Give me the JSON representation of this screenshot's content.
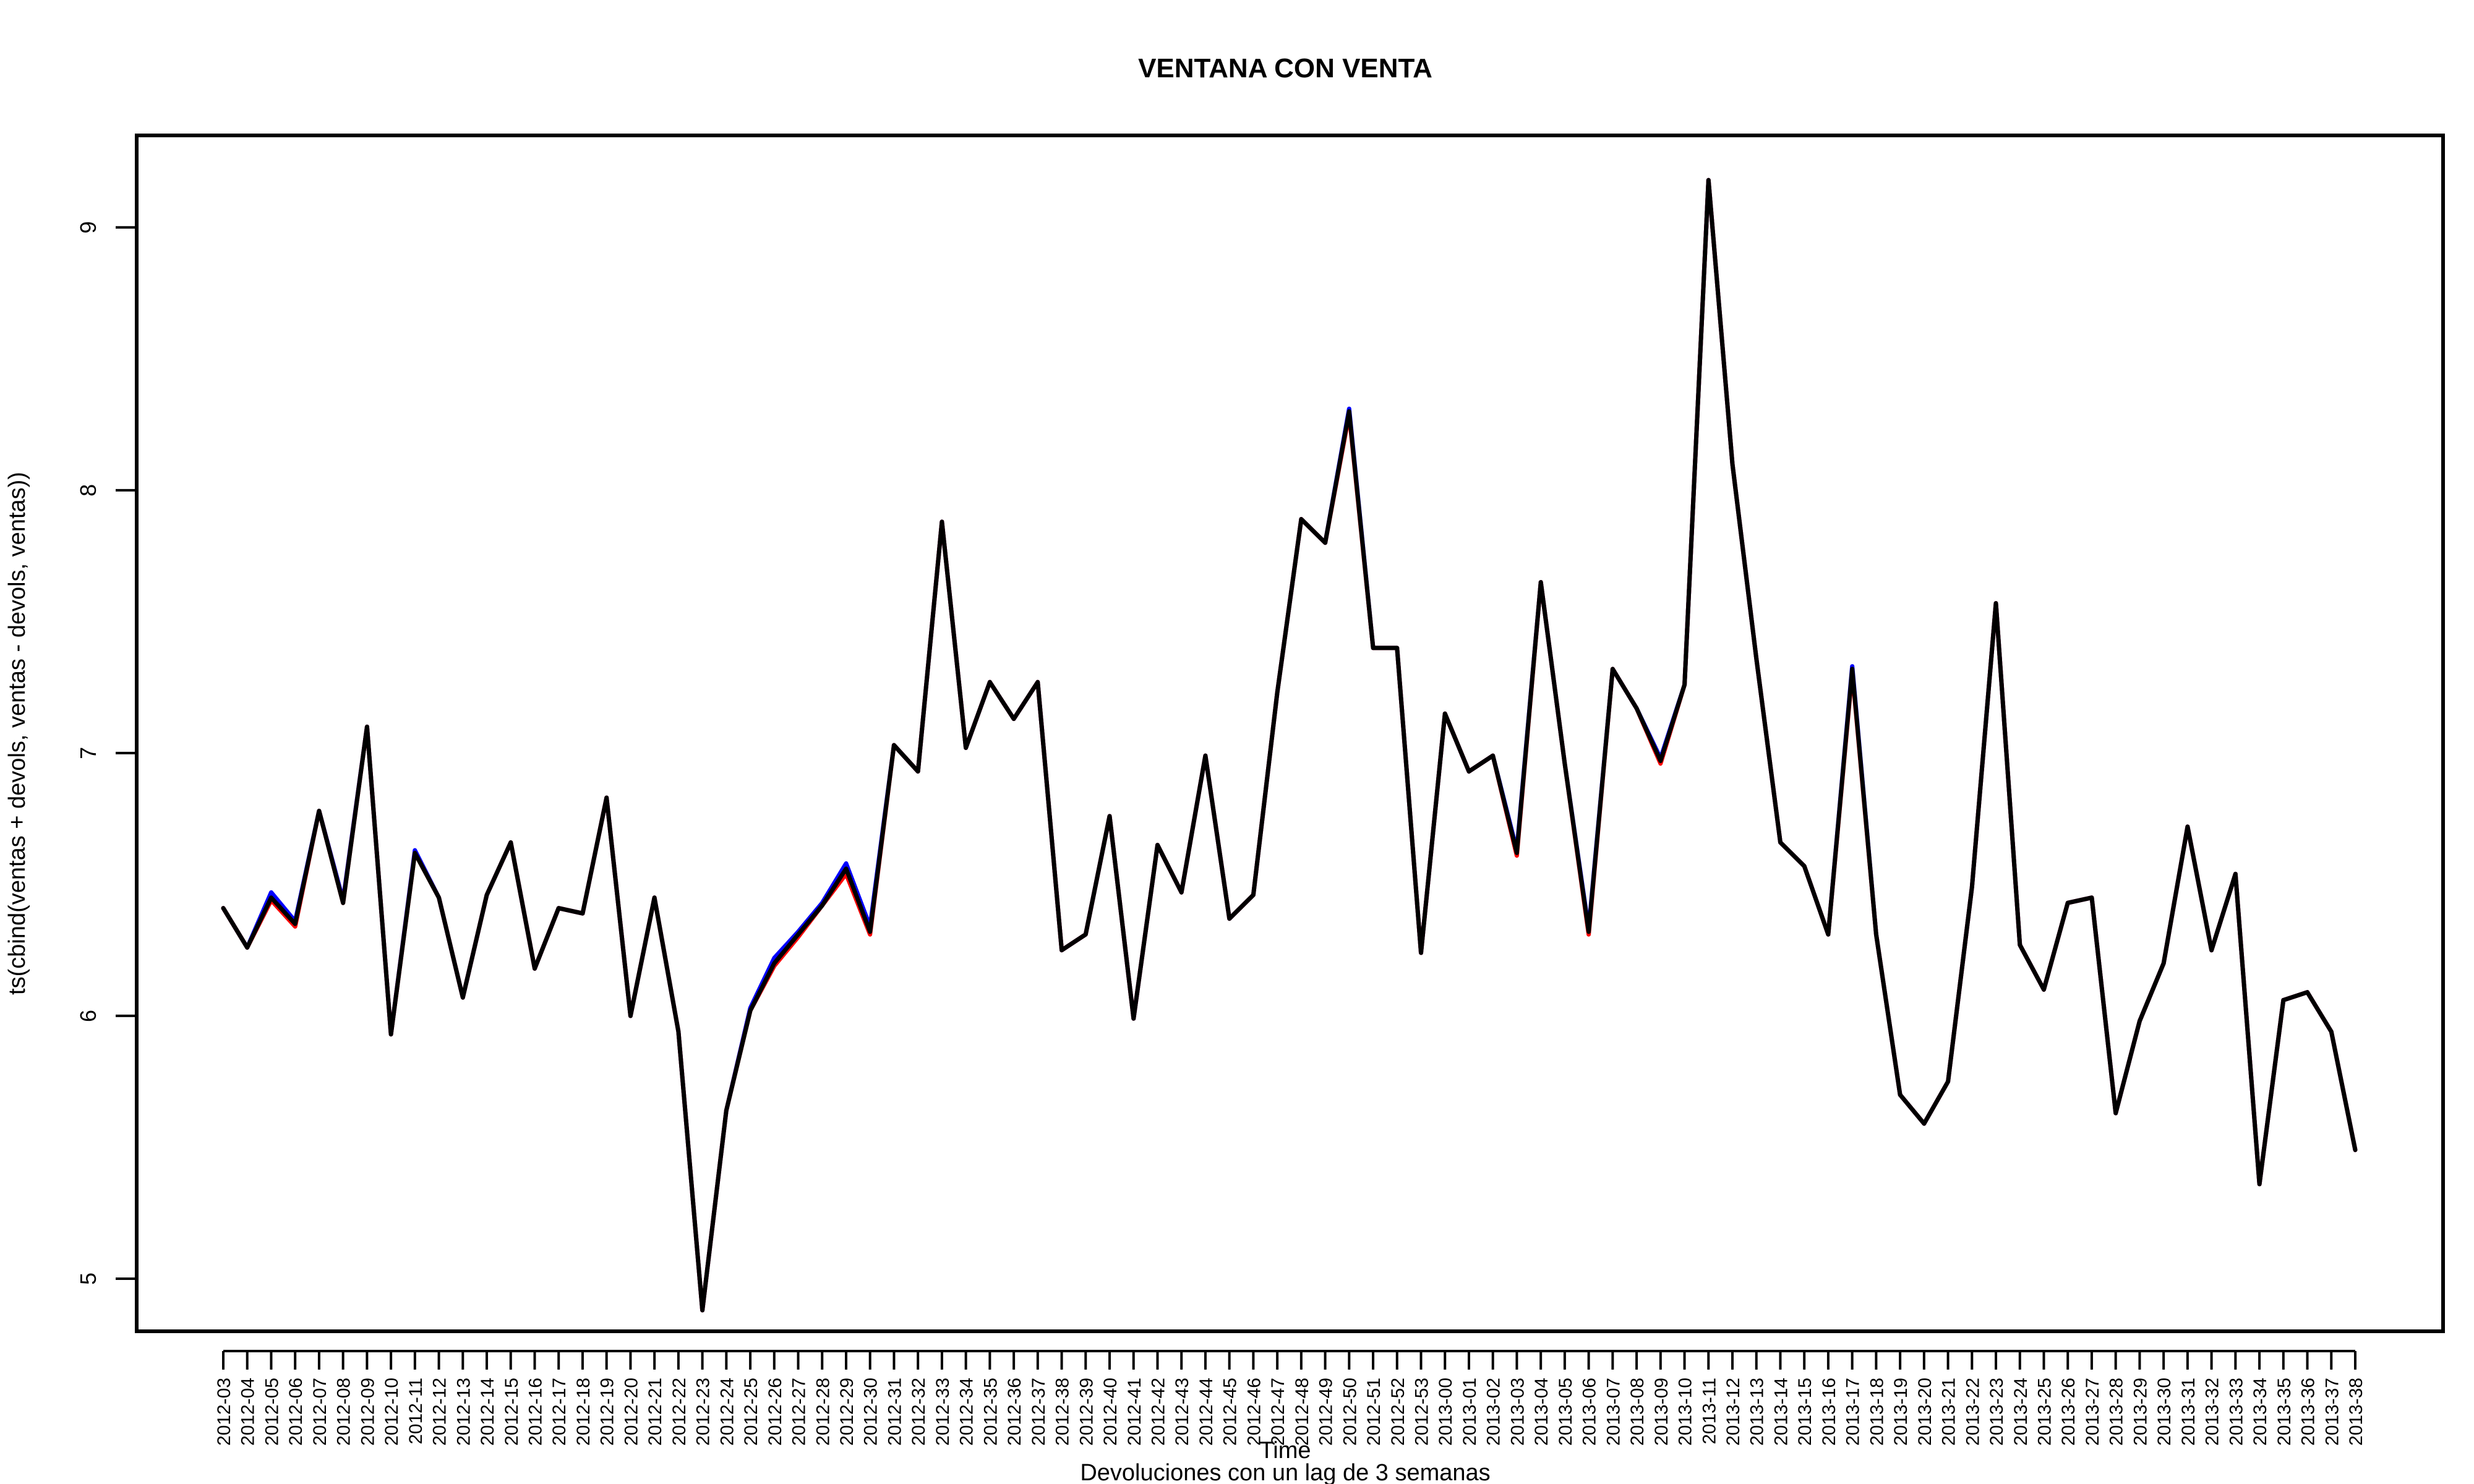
{
  "chart_data": {
    "type": "line",
    "title": "VENTANA CON VENTA",
    "xlabel": "Time",
    "ylabel": "ts(cbind(ventas + devols, ventas - devols, ventas))",
    "subtitle": "Devoluciones con un lag de 3 semanas",
    "ylim": [
      4.8,
      9.35
    ],
    "yticks": [
      5,
      6,
      7,
      8,
      9
    ],
    "grid": false,
    "categories": [
      "2012-03",
      "2012-04",
      "2012-05",
      "2012-06",
      "2012-07",
      "2012-08",
      "2012-09",
      "2012-10",
      "2012-11",
      "2012-12",
      "2012-13",
      "2012-14",
      "2012-15",
      "2012-16",
      "2012-17",
      "2012-18",
      "2012-19",
      "2012-20",
      "2012-21",
      "2012-22",
      "2012-23",
      "2012-24",
      "2012-25",
      "2012-26",
      "2012-27",
      "2012-28",
      "2012-29",
      "2012-30",
      "2012-31",
      "2012-32",
      "2012-33",
      "2012-34",
      "2012-35",
      "2012-36",
      "2012-37",
      "2012-38",
      "2012-39",
      "2012-40",
      "2012-41",
      "2012-42",
      "2012-43",
      "2012-44",
      "2012-45",
      "2012-46",
      "2012-47",
      "2012-48",
      "2012-49",
      "2012-50",
      "2012-51",
      "2012-52",
      "2012-53",
      "2013-00",
      "2013-01",
      "2013-02",
      "2013-03",
      "2013-04",
      "2013-05",
      "2013-06",
      "2013-07",
      "2013-08",
      "2013-09",
      "2013-10",
      "2013-11",
      "2013-12",
      "2013-13",
      "2013-14",
      "2013-15",
      "2013-16",
      "2013-17",
      "2013-18",
      "2013-19",
      "2013-20",
      "2013-21",
      "2013-22",
      "2013-23",
      "2013-24",
      "2013-25",
      "2013-26",
      "2013-27",
      "2013-28",
      "2013-29",
      "2013-30",
      "2013-31",
      "2013-32",
      "2013-33",
      "2013-34",
      "2013-35",
      "2013-36",
      "2013-37",
      "2013-38"
    ],
    "series": [
      {
        "color": "#0000ff",
        "values": [
          6.41,
          6.26,
          6.47,
          6.36,
          6.78,
          6.44,
          7.1,
          5.93,
          6.63,
          6.45,
          6.07,
          6.46,
          6.66,
          6.18,
          6.41,
          6.39,
          6.83,
          6.0,
          6.45,
          5.94,
          4.88,
          5.64,
          6.03,
          6.22,
          6.32,
          6.43,
          6.58,
          6.34,
          7.03,
          6.93,
          7.88,
          7.02,
          7.27,
          7.13,
          7.27,
          6.25,
          6.31,
          6.76,
          5.99,
          6.65,
          6.47,
          6.99,
          6.37,
          6.46,
          7.23,
          7.89,
          7.8,
          8.31,
          7.4,
          7.4,
          6.24,
          7.15,
          6.93,
          6.99,
          6.63,
          7.65,
          6.96,
          6.33,
          7.32,
          7.17,
          6.98,
          7.26,
          9.18,
          8.1,
          7.36,
          6.66,
          6.57,
          6.31,
          7.33,
          6.31,
          5.7,
          5.59,
          5.75,
          6.49,
          7.57,
          6.27,
          6.1,
          6.43,
          6.45,
          5.63,
          5.98,
          6.2,
          6.72,
          6.25,
          6.54,
          5.36,
          6.06,
          6.09,
          5.94,
          5.49
        ]
      },
      {
        "color": "#ff0000",
        "values": [
          6.41,
          6.26,
          6.44,
          6.34,
          6.78,
          6.43,
          7.1,
          5.93,
          6.62,
          6.45,
          6.07,
          6.46,
          6.66,
          6.18,
          6.41,
          6.39,
          6.83,
          6.0,
          6.45,
          5.94,
          4.88,
          5.64,
          6.02,
          6.19,
          6.3,
          6.42,
          6.54,
          6.31,
          7.03,
          6.93,
          7.88,
          7.02,
          7.27,
          7.13,
          7.27,
          6.25,
          6.31,
          6.76,
          5.99,
          6.65,
          6.47,
          6.99,
          6.37,
          6.46,
          7.23,
          7.89,
          7.8,
          8.29,
          7.4,
          7.4,
          6.24,
          7.15,
          6.93,
          6.99,
          6.61,
          7.65,
          6.96,
          6.31,
          7.32,
          7.17,
          6.96,
          7.26,
          9.18,
          8.1,
          7.36,
          6.66,
          6.57,
          6.31,
          7.31,
          6.31,
          5.7,
          5.59,
          5.75,
          6.49,
          7.57,
          6.27,
          6.1,
          6.43,
          6.45,
          5.63,
          5.98,
          6.2,
          6.72,
          6.25,
          6.54,
          5.36,
          6.06,
          6.09,
          5.94,
          5.49
        ]
      },
      {
        "color": "#000000",
        "values": [
          6.41,
          6.26,
          6.45,
          6.35,
          6.78,
          6.43,
          7.1,
          5.93,
          6.62,
          6.45,
          6.07,
          6.46,
          6.66,
          6.18,
          6.41,
          6.39,
          6.83,
          6.0,
          6.45,
          5.94,
          4.88,
          5.64,
          6.02,
          6.2,
          6.31,
          6.42,
          6.56,
          6.32,
          7.03,
          6.93,
          7.88,
          7.02,
          7.27,
          7.13,
          7.27,
          6.25,
          6.31,
          6.76,
          5.99,
          6.65,
          6.47,
          6.99,
          6.37,
          6.46,
          7.23,
          7.89,
          7.8,
          8.3,
          7.4,
          7.4,
          6.24,
          7.15,
          6.93,
          6.99,
          6.62,
          7.65,
          6.96,
          6.32,
          7.32,
          7.17,
          6.97,
          7.26,
          9.18,
          8.1,
          7.36,
          6.66,
          6.57,
          6.31,
          7.32,
          6.31,
          5.7,
          5.59,
          5.75,
          6.49,
          7.57,
          6.27,
          6.1,
          6.43,
          6.45,
          5.63,
          5.98,
          6.2,
          6.72,
          6.25,
          6.54,
          5.36,
          6.06,
          6.09,
          5.94,
          5.49
        ]
      }
    ]
  }
}
